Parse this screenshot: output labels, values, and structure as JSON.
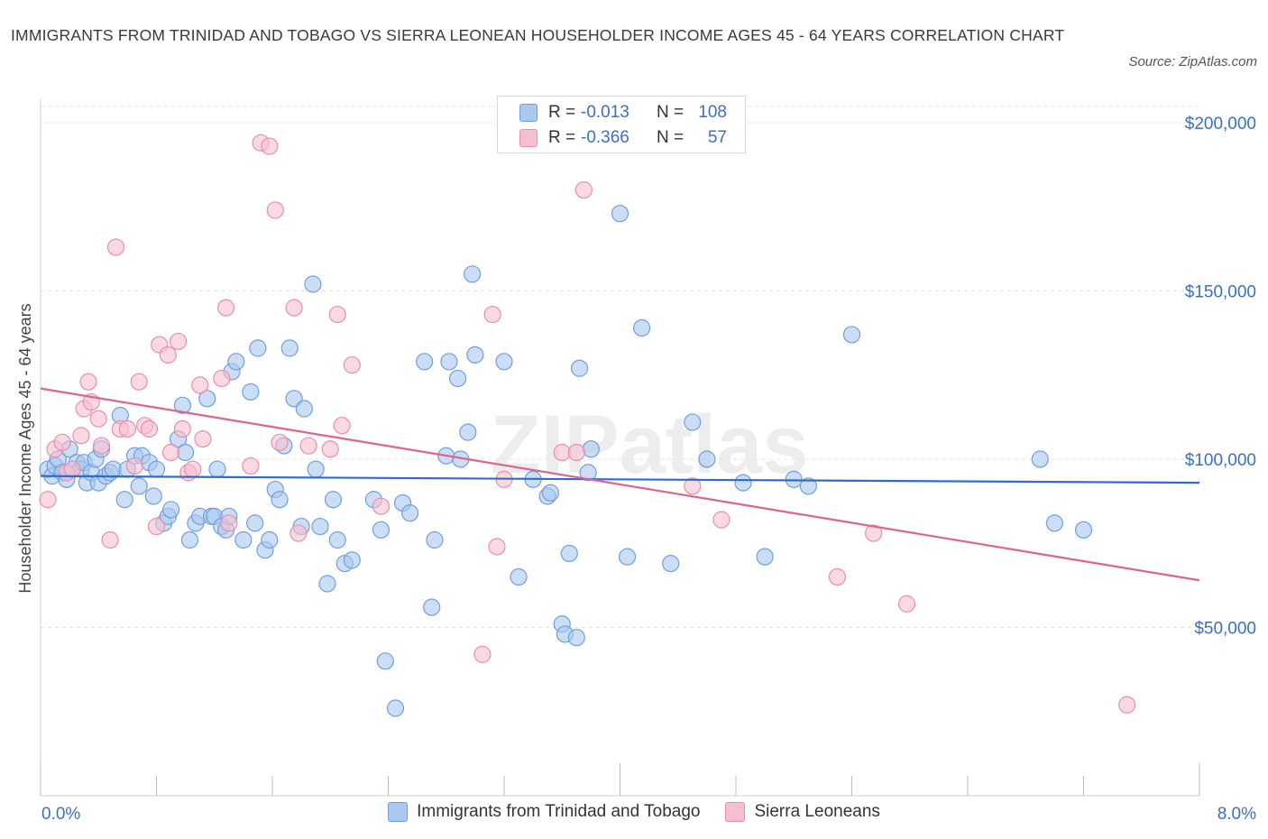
{
  "title": "IMMIGRANTS FROM TRINIDAD AND TOBAGO VS SIERRA LEONEAN HOUSEHOLDER INCOME AGES 45 - 64 YEARS CORRELATION CHART",
  "source": "Source: ZipAtlas.com",
  "watermark": "ZIPatlas",
  "colors": {
    "blue_fill": "#aac8f0",
    "blue_stroke": "#6f9fdc",
    "blue_line": "#2f6ccc",
    "pink_fill": "#f6bfd0",
    "pink_stroke": "#e88fab",
    "pink_line": "#e0628e",
    "axis_label": "#3b6fc4"
  },
  "stats": [
    {
      "r_label": "R =",
      "r_value": "-0.013",
      "n_label": "N =",
      "n_value": "108"
    },
    {
      "r_label": "R =",
      "r_value": "-0.366",
      "n_label": "N =",
      "n_value": "57"
    }
  ],
  "legend": [
    {
      "label": "Immigrants from Trinidad and Tobago"
    },
    {
      "label": "Sierra Leoneans"
    }
  ],
  "chart_data": {
    "type": "scatter",
    "xlabel": "",
    "ylabel": "Householder Income Ages 45 - 64 years",
    "xlim": [
      0,
      8
    ],
    "ylim": [
      0,
      215000
    ],
    "x_tick_labels": [
      "0.0%",
      "8.0%"
    ],
    "y_ticks": [
      50000,
      100000,
      150000,
      200000
    ],
    "y_tick_labels": [
      "$50,000",
      "$100,000",
      "$150,000",
      "$200,000"
    ],
    "grid": true,
    "legend_position": "bottom",
    "series": [
      {
        "name": "Immigrants from Trinidad and Tobago",
        "trend": [
          [
            0,
            95000
          ],
          [
            8,
            93000
          ]
        ],
        "points": [
          [
            0.05,
            97000
          ],
          [
            0.08,
            95000
          ],
          [
            0.1,
            98000
          ],
          [
            0.12,
            100000
          ],
          [
            0.15,
            96000
          ],
          [
            0.18,
            94000
          ],
          [
            0.2,
            103000
          ],
          [
            0.22,
            97000
          ],
          [
            0.25,
            99000
          ],
          [
            0.28,
            97000
          ],
          [
            0.3,
            99000
          ],
          [
            0.32,
            93000
          ],
          [
            0.35,
            96000
          ],
          [
            0.38,
            100000
          ],
          [
            0.4,
            93000
          ],
          [
            0.42,
            103000
          ],
          [
            0.45,
            95000
          ],
          [
            0.48,
            96000
          ],
          [
            0.5,
            97000
          ],
          [
            0.55,
            113000
          ],
          [
            0.58,
            88000
          ],
          [
            0.6,
            97000
          ],
          [
            0.65,
            101000
          ],
          [
            0.68,
            92000
          ],
          [
            0.7,
            101000
          ],
          [
            0.75,
            99000
          ],
          [
            0.78,
            89000
          ],
          [
            0.8,
            97000
          ],
          [
            0.85,
            81000
          ],
          [
            0.88,
            83000
          ],
          [
            0.9,
            85000
          ],
          [
            0.95,
            106000
          ],
          [
            0.98,
            116000
          ],
          [
            1.0,
            102000
          ],
          [
            1.03,
            76000
          ],
          [
            1.07,
            81000
          ],
          [
            1.1,
            83000
          ],
          [
            1.15,
            118000
          ],
          [
            1.18,
            83000
          ],
          [
            1.2,
            83000
          ],
          [
            1.22,
            97000
          ],
          [
            1.25,
            80000
          ],
          [
            1.28,
            79000
          ],
          [
            1.3,
            83000
          ],
          [
            1.32,
            126000
          ],
          [
            1.35,
            129000
          ],
          [
            1.4,
            76000
          ],
          [
            1.45,
            120000
          ],
          [
            1.48,
            81000
          ],
          [
            1.5,
            133000
          ],
          [
            1.55,
            73000
          ],
          [
            1.58,
            76000
          ],
          [
            1.62,
            91000
          ],
          [
            1.65,
            88000
          ],
          [
            1.68,
            104000
          ],
          [
            1.72,
            133000
          ],
          [
            1.75,
            118000
          ],
          [
            1.8,
            80000
          ],
          [
            1.82,
            115000
          ],
          [
            1.88,
            152000
          ],
          [
            1.9,
            97000
          ],
          [
            1.93,
            80000
          ],
          [
            1.98,
            63000
          ],
          [
            2.02,
            88000
          ],
          [
            2.05,
            76000
          ],
          [
            2.1,
            69000
          ],
          [
            2.15,
            70000
          ],
          [
            2.3,
            88000
          ],
          [
            2.35,
            79000
          ],
          [
            2.38,
            40000
          ],
          [
            2.45,
            26000
          ],
          [
            2.5,
            87000
          ],
          [
            2.55,
            84000
          ],
          [
            2.65,
            129000
          ],
          [
            2.7,
            56000
          ],
          [
            2.72,
            76000
          ],
          [
            2.8,
            101000
          ],
          [
            2.82,
            129000
          ],
          [
            2.88,
            124000
          ],
          [
            2.9,
            100000
          ],
          [
            2.95,
            108000
          ],
          [
            2.98,
            155000
          ],
          [
            3.0,
            131000
          ],
          [
            3.2,
            129000
          ],
          [
            3.3,
            65000
          ],
          [
            3.4,
            94000
          ],
          [
            3.5,
            89000
          ],
          [
            3.52,
            90000
          ],
          [
            3.6,
            51000
          ],
          [
            3.62,
            48000
          ],
          [
            3.65,
            72000
          ],
          [
            3.7,
            47000
          ],
          [
            3.72,
            127000
          ],
          [
            3.78,
            96000
          ],
          [
            3.8,
            103000
          ],
          [
            4.0,
            173000
          ],
          [
            4.05,
            71000
          ],
          [
            4.15,
            139000
          ],
          [
            4.35,
            69000
          ],
          [
            4.5,
            111000
          ],
          [
            4.6,
            100000
          ],
          [
            4.85,
            93000
          ],
          [
            5.0,
            71000
          ],
          [
            5.2,
            94000
          ],
          [
            5.3,
            92000
          ],
          [
            5.6,
            137000
          ],
          [
            6.9,
            100000
          ],
          [
            7.0,
            81000
          ],
          [
            7.2,
            79000
          ]
        ]
      },
      {
        "name": "Sierra Leoneans",
        "trend": [
          [
            0,
            121000
          ],
          [
            8,
            64000
          ]
        ],
        "points": [
          [
            0.05,
            88000
          ],
          [
            0.1,
            103000
          ],
          [
            0.15,
            105000
          ],
          [
            0.18,
            96000
          ],
          [
            0.22,
            97000
          ],
          [
            0.28,
            107000
          ],
          [
            0.3,
            115000
          ],
          [
            0.33,
            123000
          ],
          [
            0.35,
            117000
          ],
          [
            0.4,
            112000
          ],
          [
            0.42,
            104000
          ],
          [
            0.48,
            76000
          ],
          [
            0.52,
            163000
          ],
          [
            0.55,
            109000
          ],
          [
            0.6,
            109000
          ],
          [
            0.65,
            98000
          ],
          [
            0.68,
            123000
          ],
          [
            0.72,
            110000
          ],
          [
            0.75,
            109000
          ],
          [
            0.8,
            80000
          ],
          [
            0.82,
            134000
          ],
          [
            0.88,
            131000
          ],
          [
            0.9,
            102000
          ],
          [
            0.95,
            135000
          ],
          [
            0.98,
            109000
          ],
          [
            1.02,
            96000
          ],
          [
            1.05,
            97000
          ],
          [
            1.1,
            122000
          ],
          [
            1.12,
            106000
          ],
          [
            1.25,
            124000
          ],
          [
            1.28,
            145000
          ],
          [
            1.3,
            81000
          ],
          [
            1.45,
            98000
          ],
          [
            1.52,
            194000
          ],
          [
            1.58,
            193000
          ],
          [
            1.62,
            174000
          ],
          [
            1.65,
            105000
          ],
          [
            1.75,
            145000
          ],
          [
            1.78,
            78000
          ],
          [
            1.85,
            104000
          ],
          [
            2.0,
            103000
          ],
          [
            2.05,
            143000
          ],
          [
            2.08,
            110000
          ],
          [
            2.15,
            128000
          ],
          [
            2.35,
            86000
          ],
          [
            3.05,
            42000
          ],
          [
            3.12,
            143000
          ],
          [
            3.15,
            74000
          ],
          [
            3.2,
            94000
          ],
          [
            3.6,
            102000
          ],
          [
            3.7,
            102000
          ],
          [
            3.75,
            180000
          ],
          [
            4.5,
            92000
          ],
          [
            4.7,
            82000
          ],
          [
            5.5,
            65000
          ],
          [
            5.75,
            78000
          ],
          [
            5.98,
            57000
          ],
          [
            7.5,
            27000
          ]
        ]
      }
    ]
  }
}
